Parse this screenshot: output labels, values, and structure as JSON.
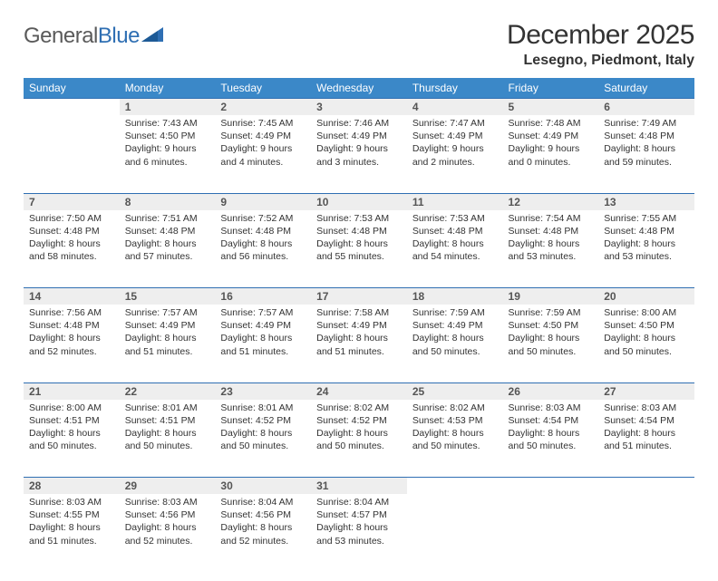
{
  "logo": {
    "word1": "General",
    "word2": "Blue"
  },
  "title": "December 2025",
  "location": "Lesegno, Piedmont, Italy",
  "colors": {
    "header_bg": "#3b88c8",
    "header_text": "#ffffff",
    "daynum_bg": "#eeeeee",
    "rule": "#2f6fb3",
    "body_text": "#333333",
    "logo_gray": "#5a5a5a",
    "logo_blue": "#2f6fb3"
  },
  "weekdays": [
    "Sunday",
    "Monday",
    "Tuesday",
    "Wednesday",
    "Thursday",
    "Friday",
    "Saturday"
  ],
  "weeks": [
    [
      null,
      {
        "n": "1",
        "sr": "7:43 AM",
        "ss": "4:50 PM",
        "dl": "9 hours and 6 minutes."
      },
      {
        "n": "2",
        "sr": "7:45 AM",
        "ss": "4:49 PM",
        "dl": "9 hours and 4 minutes."
      },
      {
        "n": "3",
        "sr": "7:46 AM",
        "ss": "4:49 PM",
        "dl": "9 hours and 3 minutes."
      },
      {
        "n": "4",
        "sr": "7:47 AM",
        "ss": "4:49 PM",
        "dl": "9 hours and 2 minutes."
      },
      {
        "n": "5",
        "sr": "7:48 AM",
        "ss": "4:49 PM",
        "dl": "9 hours and 0 minutes."
      },
      {
        "n": "6",
        "sr": "7:49 AM",
        "ss": "4:48 PM",
        "dl": "8 hours and 59 minutes."
      }
    ],
    [
      {
        "n": "7",
        "sr": "7:50 AM",
        "ss": "4:48 PM",
        "dl": "8 hours and 58 minutes."
      },
      {
        "n": "8",
        "sr": "7:51 AM",
        "ss": "4:48 PM",
        "dl": "8 hours and 57 minutes."
      },
      {
        "n": "9",
        "sr": "7:52 AM",
        "ss": "4:48 PM",
        "dl": "8 hours and 56 minutes."
      },
      {
        "n": "10",
        "sr": "7:53 AM",
        "ss": "4:48 PM",
        "dl": "8 hours and 55 minutes."
      },
      {
        "n": "11",
        "sr": "7:53 AM",
        "ss": "4:48 PM",
        "dl": "8 hours and 54 minutes."
      },
      {
        "n": "12",
        "sr": "7:54 AM",
        "ss": "4:48 PM",
        "dl": "8 hours and 53 minutes."
      },
      {
        "n": "13",
        "sr": "7:55 AM",
        "ss": "4:48 PM",
        "dl": "8 hours and 53 minutes."
      }
    ],
    [
      {
        "n": "14",
        "sr": "7:56 AM",
        "ss": "4:48 PM",
        "dl": "8 hours and 52 minutes."
      },
      {
        "n": "15",
        "sr": "7:57 AM",
        "ss": "4:49 PM",
        "dl": "8 hours and 51 minutes."
      },
      {
        "n": "16",
        "sr": "7:57 AM",
        "ss": "4:49 PM",
        "dl": "8 hours and 51 minutes."
      },
      {
        "n": "17",
        "sr": "7:58 AM",
        "ss": "4:49 PM",
        "dl": "8 hours and 51 minutes."
      },
      {
        "n": "18",
        "sr": "7:59 AM",
        "ss": "4:49 PM",
        "dl": "8 hours and 50 minutes."
      },
      {
        "n": "19",
        "sr": "7:59 AM",
        "ss": "4:50 PM",
        "dl": "8 hours and 50 minutes."
      },
      {
        "n": "20",
        "sr": "8:00 AM",
        "ss": "4:50 PM",
        "dl": "8 hours and 50 minutes."
      }
    ],
    [
      {
        "n": "21",
        "sr": "8:00 AM",
        "ss": "4:51 PM",
        "dl": "8 hours and 50 minutes."
      },
      {
        "n": "22",
        "sr": "8:01 AM",
        "ss": "4:51 PM",
        "dl": "8 hours and 50 minutes."
      },
      {
        "n": "23",
        "sr": "8:01 AM",
        "ss": "4:52 PM",
        "dl": "8 hours and 50 minutes."
      },
      {
        "n": "24",
        "sr": "8:02 AM",
        "ss": "4:52 PM",
        "dl": "8 hours and 50 minutes."
      },
      {
        "n": "25",
        "sr": "8:02 AM",
        "ss": "4:53 PM",
        "dl": "8 hours and 50 minutes."
      },
      {
        "n": "26",
        "sr": "8:03 AM",
        "ss": "4:54 PM",
        "dl": "8 hours and 50 minutes."
      },
      {
        "n": "27",
        "sr": "8:03 AM",
        "ss": "4:54 PM",
        "dl": "8 hours and 51 minutes."
      }
    ],
    [
      {
        "n": "28",
        "sr": "8:03 AM",
        "ss": "4:55 PM",
        "dl": "8 hours and 51 minutes."
      },
      {
        "n": "29",
        "sr": "8:03 AM",
        "ss": "4:56 PM",
        "dl": "8 hours and 52 minutes."
      },
      {
        "n": "30",
        "sr": "8:04 AM",
        "ss": "4:56 PM",
        "dl": "8 hours and 52 minutes."
      },
      {
        "n": "31",
        "sr": "8:04 AM",
        "ss": "4:57 PM",
        "dl": "8 hours and 53 minutes."
      },
      null,
      null,
      null
    ]
  ],
  "labels": {
    "sunrise": "Sunrise:",
    "sunset": "Sunset:",
    "daylight": "Daylight:"
  }
}
